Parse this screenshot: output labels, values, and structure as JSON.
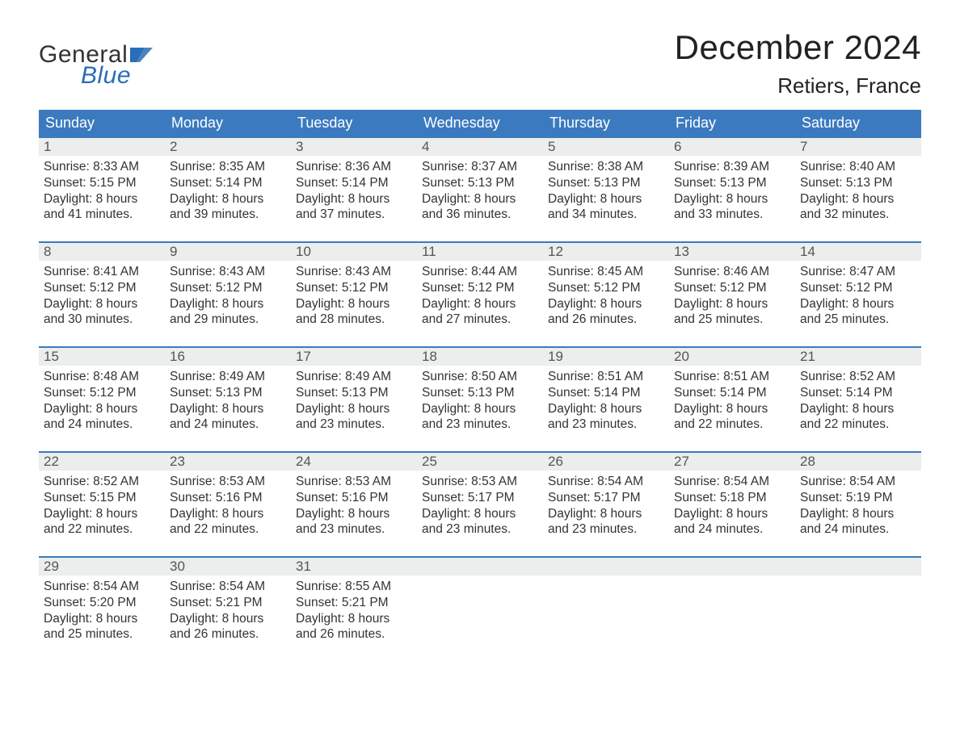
{
  "logo": {
    "text_general": "General",
    "text_blue": "Blue",
    "flag_color": "#2a6db8"
  },
  "title": "December 2024",
  "location": "Retiers, France",
  "header_bg": "#3b7abf",
  "header_text_color": "#ffffff",
  "daynum_bg": "#eceded",
  "week_border_color": "#3b7abf",
  "body_text_color": "#333333",
  "weekdays": [
    "Sunday",
    "Monday",
    "Tuesday",
    "Wednesday",
    "Thursday",
    "Friday",
    "Saturday"
  ],
  "weeks": [
    [
      {
        "n": "1",
        "sr": "8:33 AM",
        "ss": "5:15 PM",
        "dl1": "Daylight: 8 hours",
        "dl2": "and 41 minutes."
      },
      {
        "n": "2",
        "sr": "8:35 AM",
        "ss": "5:14 PM",
        "dl1": "Daylight: 8 hours",
        "dl2": "and 39 minutes."
      },
      {
        "n": "3",
        "sr": "8:36 AM",
        "ss": "5:14 PM",
        "dl1": "Daylight: 8 hours",
        "dl2": "and 37 minutes."
      },
      {
        "n": "4",
        "sr": "8:37 AM",
        "ss": "5:13 PM",
        "dl1": "Daylight: 8 hours",
        "dl2": "and 36 minutes."
      },
      {
        "n": "5",
        "sr": "8:38 AM",
        "ss": "5:13 PM",
        "dl1": "Daylight: 8 hours",
        "dl2": "and 34 minutes."
      },
      {
        "n": "6",
        "sr": "8:39 AM",
        "ss": "5:13 PM",
        "dl1": "Daylight: 8 hours",
        "dl2": "and 33 minutes."
      },
      {
        "n": "7",
        "sr": "8:40 AM",
        "ss": "5:13 PM",
        "dl1": "Daylight: 8 hours",
        "dl2": "and 32 minutes."
      }
    ],
    [
      {
        "n": "8",
        "sr": "8:41 AM",
        "ss": "5:12 PM",
        "dl1": "Daylight: 8 hours",
        "dl2": "and 30 minutes."
      },
      {
        "n": "9",
        "sr": "8:43 AM",
        "ss": "5:12 PM",
        "dl1": "Daylight: 8 hours",
        "dl2": "and 29 minutes."
      },
      {
        "n": "10",
        "sr": "8:43 AM",
        "ss": "5:12 PM",
        "dl1": "Daylight: 8 hours",
        "dl2": "and 28 minutes."
      },
      {
        "n": "11",
        "sr": "8:44 AM",
        "ss": "5:12 PM",
        "dl1": "Daylight: 8 hours",
        "dl2": "and 27 minutes."
      },
      {
        "n": "12",
        "sr": "8:45 AM",
        "ss": "5:12 PM",
        "dl1": "Daylight: 8 hours",
        "dl2": "and 26 minutes."
      },
      {
        "n": "13",
        "sr": "8:46 AM",
        "ss": "5:12 PM",
        "dl1": "Daylight: 8 hours",
        "dl2": "and 25 minutes."
      },
      {
        "n": "14",
        "sr": "8:47 AM",
        "ss": "5:12 PM",
        "dl1": "Daylight: 8 hours",
        "dl2": "and 25 minutes."
      }
    ],
    [
      {
        "n": "15",
        "sr": "8:48 AM",
        "ss": "5:12 PM",
        "dl1": "Daylight: 8 hours",
        "dl2": "and 24 minutes."
      },
      {
        "n": "16",
        "sr": "8:49 AM",
        "ss": "5:13 PM",
        "dl1": "Daylight: 8 hours",
        "dl2": "and 24 minutes."
      },
      {
        "n": "17",
        "sr": "8:49 AM",
        "ss": "5:13 PM",
        "dl1": "Daylight: 8 hours",
        "dl2": "and 23 minutes."
      },
      {
        "n": "18",
        "sr": "8:50 AM",
        "ss": "5:13 PM",
        "dl1": "Daylight: 8 hours",
        "dl2": "and 23 minutes."
      },
      {
        "n": "19",
        "sr": "8:51 AM",
        "ss": "5:14 PM",
        "dl1": "Daylight: 8 hours",
        "dl2": "and 23 minutes."
      },
      {
        "n": "20",
        "sr": "8:51 AM",
        "ss": "5:14 PM",
        "dl1": "Daylight: 8 hours",
        "dl2": "and 22 minutes."
      },
      {
        "n": "21",
        "sr": "8:52 AM",
        "ss": "5:14 PM",
        "dl1": "Daylight: 8 hours",
        "dl2": "and 22 minutes."
      }
    ],
    [
      {
        "n": "22",
        "sr": "8:52 AM",
        "ss": "5:15 PM",
        "dl1": "Daylight: 8 hours",
        "dl2": "and 22 minutes."
      },
      {
        "n": "23",
        "sr": "8:53 AM",
        "ss": "5:16 PM",
        "dl1": "Daylight: 8 hours",
        "dl2": "and 22 minutes."
      },
      {
        "n": "24",
        "sr": "8:53 AM",
        "ss": "5:16 PM",
        "dl1": "Daylight: 8 hours",
        "dl2": "and 23 minutes."
      },
      {
        "n": "25",
        "sr": "8:53 AM",
        "ss": "5:17 PM",
        "dl1": "Daylight: 8 hours",
        "dl2": "and 23 minutes."
      },
      {
        "n": "26",
        "sr": "8:54 AM",
        "ss": "5:17 PM",
        "dl1": "Daylight: 8 hours",
        "dl2": "and 23 minutes."
      },
      {
        "n": "27",
        "sr": "8:54 AM",
        "ss": "5:18 PM",
        "dl1": "Daylight: 8 hours",
        "dl2": "and 24 minutes."
      },
      {
        "n": "28",
        "sr": "8:54 AM",
        "ss": "5:19 PM",
        "dl1": "Daylight: 8 hours",
        "dl2": "and 24 minutes."
      }
    ],
    [
      {
        "n": "29",
        "sr": "8:54 AM",
        "ss": "5:20 PM",
        "dl1": "Daylight: 8 hours",
        "dl2": "and 25 minutes."
      },
      {
        "n": "30",
        "sr": "8:54 AM",
        "ss": "5:21 PM",
        "dl1": "Daylight: 8 hours",
        "dl2": "and 26 minutes."
      },
      {
        "n": "31",
        "sr": "8:55 AM",
        "ss": "5:21 PM",
        "dl1": "Daylight: 8 hours",
        "dl2": "and 26 minutes."
      },
      {
        "empty": true
      },
      {
        "empty": true
      },
      {
        "empty": true
      },
      {
        "empty": true
      }
    ]
  ],
  "labels": {
    "sunrise_prefix": "Sunrise: ",
    "sunset_prefix": "Sunset: "
  }
}
